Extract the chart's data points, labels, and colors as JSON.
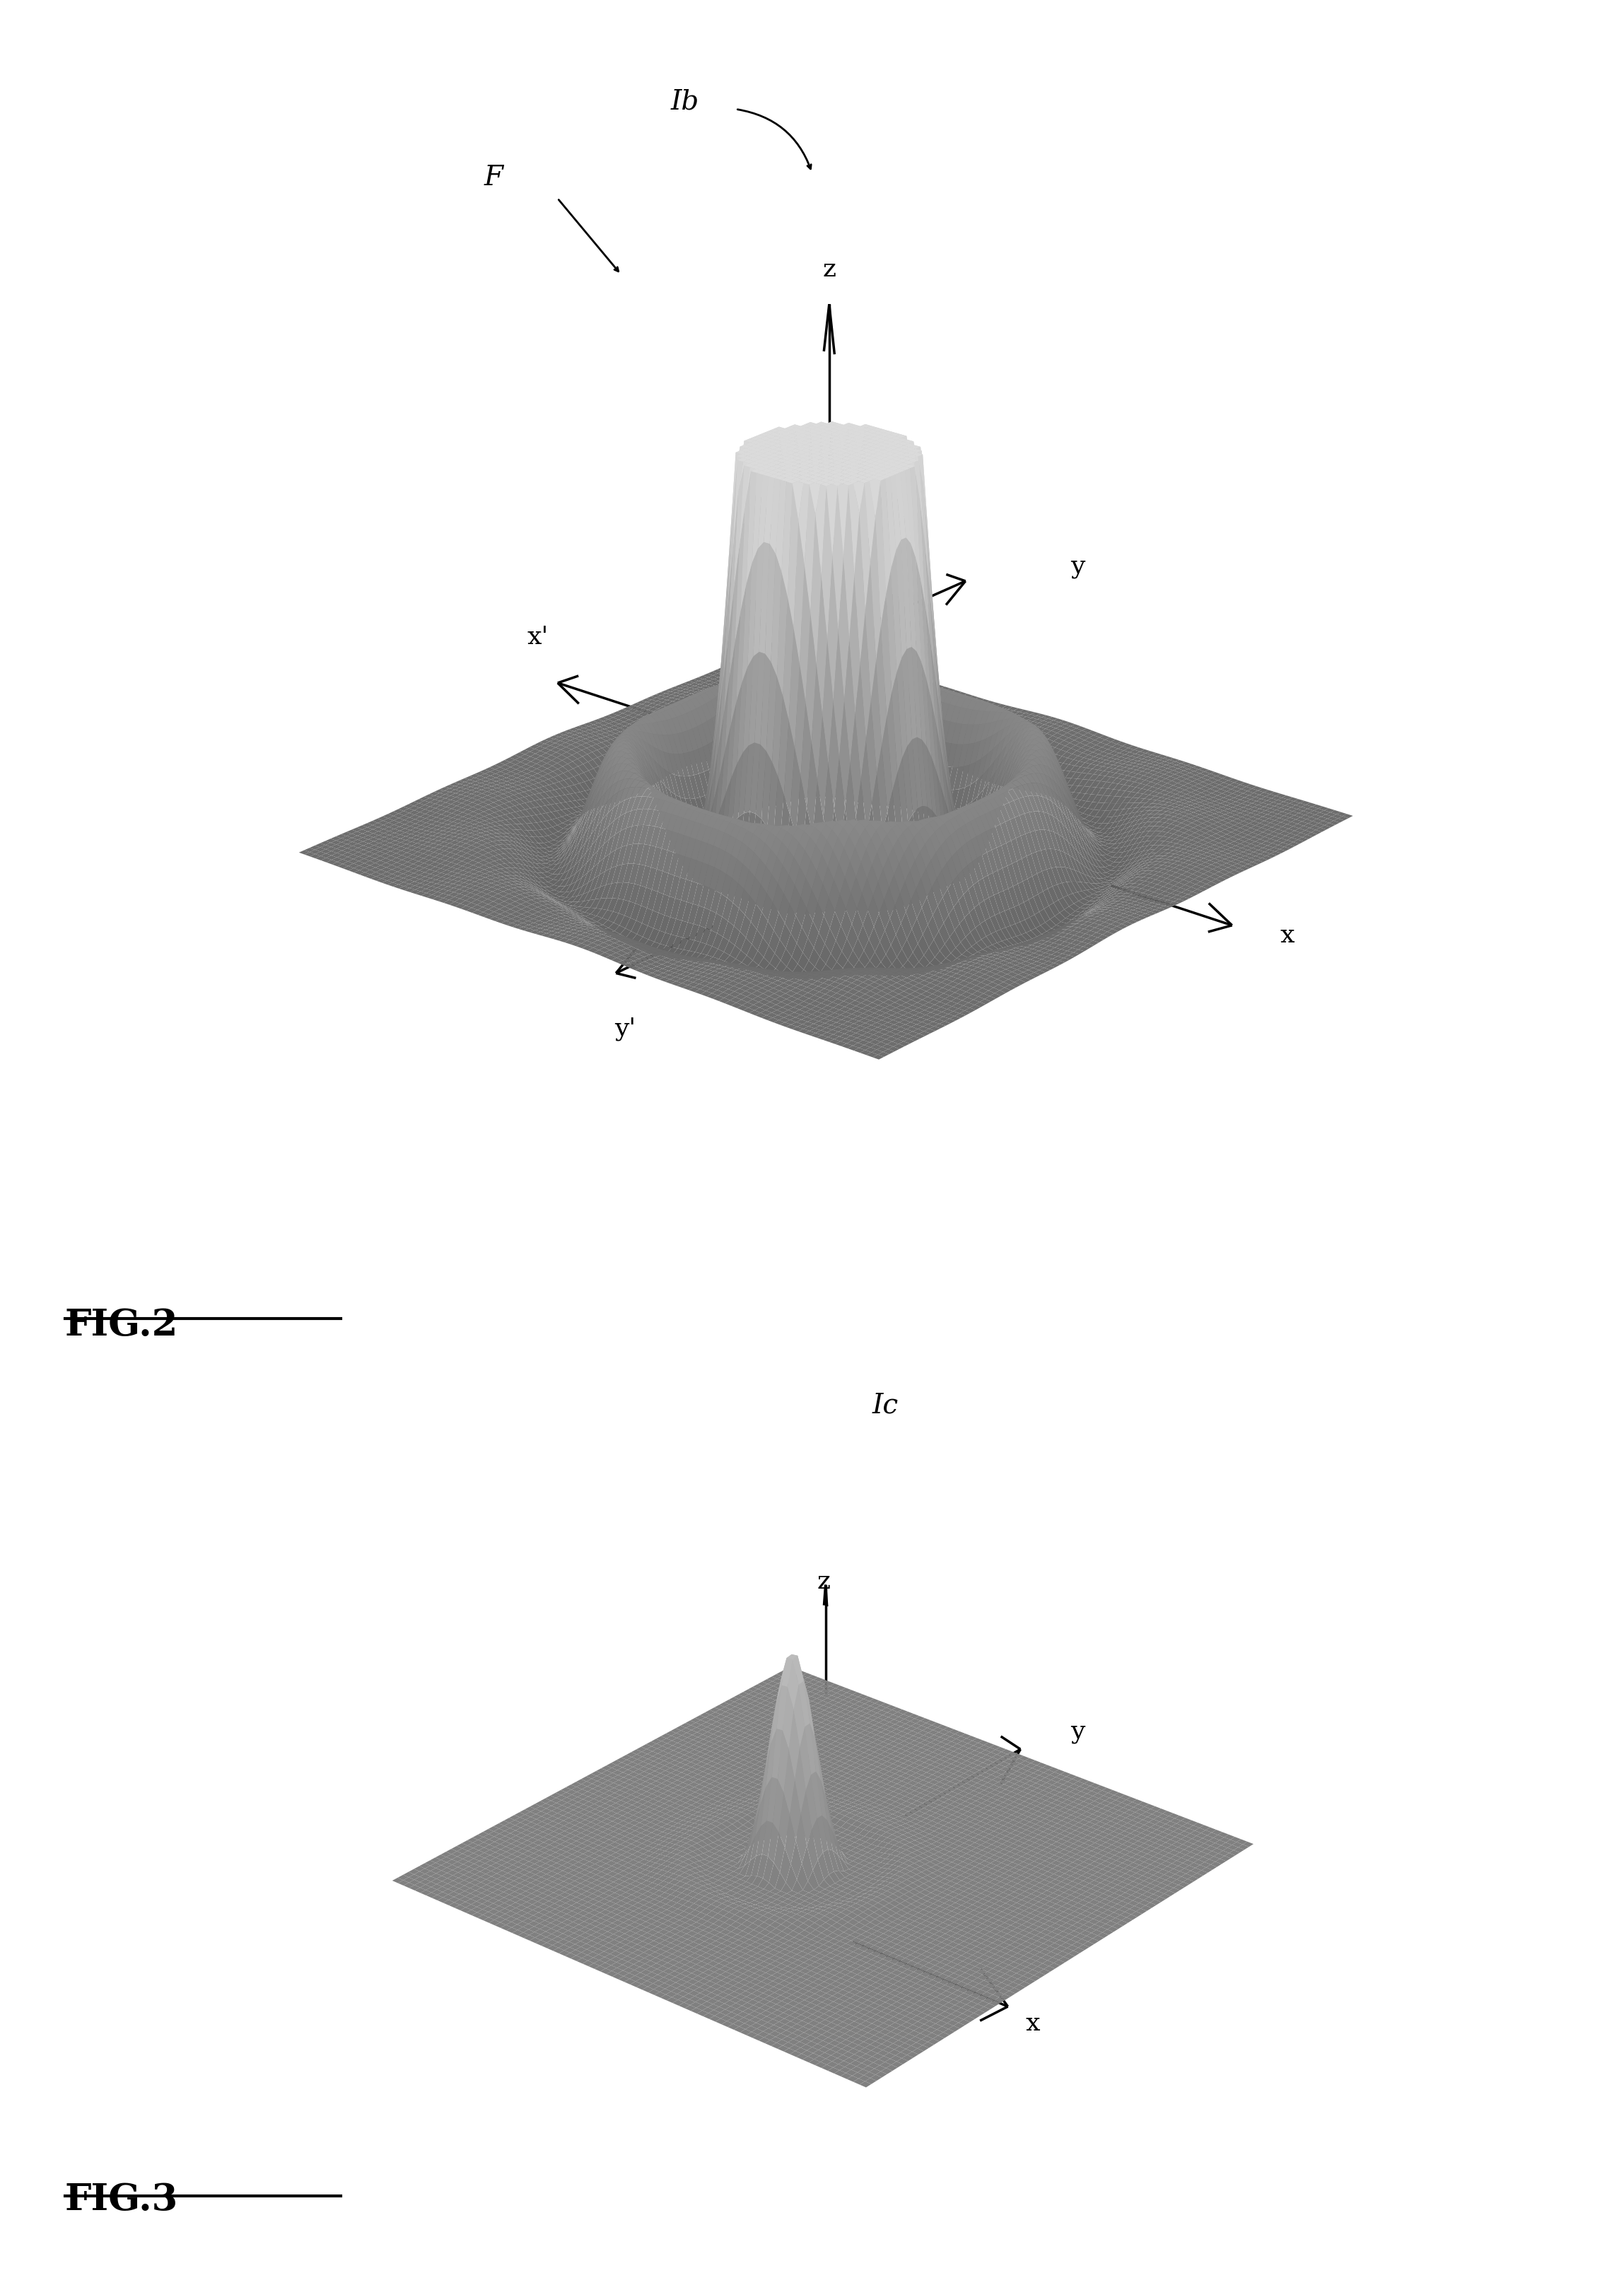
{
  "background_color": "#ffffff",
  "fig2_title": "FIG.2",
  "fig3_title": "FIG.3",
  "fig2_elev": 22,
  "fig2_azim": -50,
  "fig3_elev": 28,
  "fig3_azim": -50,
  "grid_resolution": 100,
  "fig3_grid_resolution": 80,
  "axis_label_fontsize": 26,
  "title_fontsize": 38,
  "label_fontsize": 28,
  "annotation_fontsize": 26,
  "linewidth_surface": 0.2
}
